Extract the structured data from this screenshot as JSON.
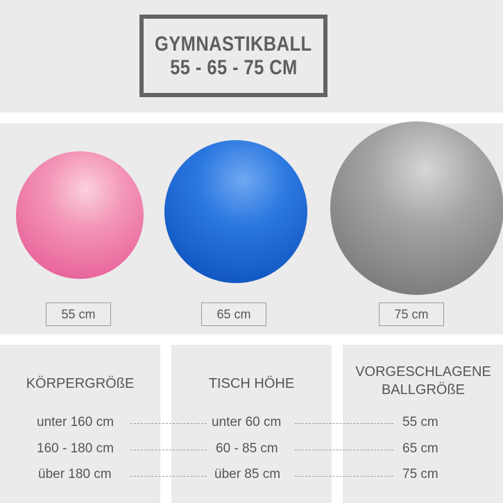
{
  "title": {
    "line1": "GYMNASTIKBALL",
    "line2": "55 - 65 - 75 CM"
  },
  "balls": [
    {
      "label": "55 cm",
      "color": "#f07ea6"
    },
    {
      "label": "65 cm",
      "color": "#1f6ad6"
    },
    {
      "label": "75 cm",
      "color": "#8c8c8c"
    }
  ],
  "table": {
    "headers": [
      "KÖRPERGRÖßE",
      "TISCH HÖHE",
      "VORGESCHLAGENE BALLGRÖßE"
    ],
    "rows": [
      [
        "unter 160 cm",
        "unter 60 cm",
        "55 cm"
      ],
      [
        "160 - 180 cm",
        "60 - 85 cm",
        "65 cm"
      ],
      [
        "über 180 cm",
        "über 85 cm",
        "75 cm"
      ]
    ]
  }
}
